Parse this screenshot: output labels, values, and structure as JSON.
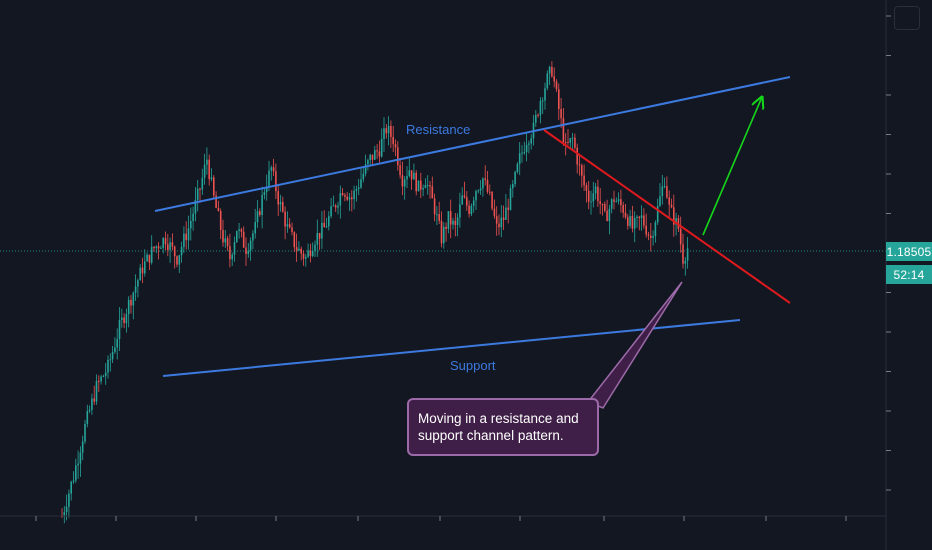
{
  "chart_data": {
    "type": "candlestick",
    "price_label": "1.18505",
    "countdown_label": "52:14",
    "annotations": {
      "resistance": "Resistance",
      "support": "Support",
      "note_line1": "Moving in a resistance and",
      "note_line2": "support channel pattern."
    },
    "price_path": [
      [
        0,
        1.167
      ],
      [
        5,
        1.169
      ],
      [
        10,
        1.1715
      ],
      [
        15,
        1.1735
      ],
      [
        20,
        1.1745
      ],
      [
        25,
        1.1765
      ],
      [
        30,
        1.178
      ],
      [
        35,
        1.1795
      ],
      [
        40,
        1.1805
      ],
      [
        45,
        1.181
      ],
      [
        50,
        1.18
      ],
      [
        55,
        1.1815
      ],
      [
        60,
        1.1835
      ],
      [
        63,
        1.185
      ],
      [
        66,
        1.183
      ],
      [
        70,
        1.181
      ],
      [
        73,
        1.18
      ],
      [
        76,
        1.1815
      ],
      [
        80,
        1.1805
      ],
      [
        84,
        1.1815
      ],
      [
        88,
        1.1835
      ],
      [
        91,
        1.1845
      ],
      [
        94,
        1.183
      ],
      [
        98,
        1.1815
      ],
      [
        102,
        1.1805
      ],
      [
        106,
        1.18
      ],
      [
        110,
        1.181
      ],
      [
        114,
        1.1815
      ],
      [
        118,
        1.1825
      ],
      [
        122,
        1.1835
      ],
      [
        126,
        1.183
      ],
      [
        130,
        1.184
      ],
      [
        134,
        1.185
      ],
      [
        138,
        1.1855
      ],
      [
        141,
        1.1865
      ],
      [
        144,
        1.186
      ],
      [
        148,
        1.184
      ],
      [
        151,
        1.1845
      ],
      [
        155,
        1.1835
      ],
      [
        158,
        1.184
      ],
      [
        162,
        1.1825
      ],
      [
        165,
        1.181
      ],
      [
        168,
        1.182
      ],
      [
        171,
        1.1815
      ],
      [
        174,
        1.183
      ],
      [
        177,
        1.1825
      ],
      [
        180,
        1.1835
      ],
      [
        183,
        1.184
      ],
      [
        186,
        1.183
      ],
      [
        189,
        1.1815
      ],
      [
        192,
        1.182
      ],
      [
        196,
        1.1835
      ],
      [
        199,
        1.185
      ],
      [
        202,
        1.186
      ],
      [
        205,
        1.1865
      ],
      [
        208,
        1.188
      ],
      [
        211,
        1.189
      ],
      [
        213,
        1.1895
      ],
      [
        216,
        1.1875
      ],
      [
        219,
        1.1855
      ],
      [
        222,
        1.186
      ],
      [
        226,
        1.184
      ],
      [
        229,
        1.183
      ],
      [
        232,
        1.1835
      ],
      [
        236,
        1.182
      ],
      [
        240,
        1.183
      ],
      [
        244,
        1.1825
      ],
      [
        248,
        1.1815
      ],
      [
        252,
        1.182
      ],
      [
        256,
        1.181
      ],
      [
        260,
        1.183
      ],
      [
        262,
        1.184
      ],
      [
        264,
        1.1825
      ],
      [
        268,
        1.1815
      ],
      [
        270,
        1.18
      ],
      [
        272,
        1.1805
      ]
    ],
    "trend_lines": [
      {
        "role": "resistance",
        "color": "#3c7ae0",
        "from": [
          0,
          1.185
        ],
        "to": [
          294,
          1.1915
        ]
      },
      {
        "role": "support",
        "color": "#3c7ae0",
        "from": [
          2,
          1.179
        ],
        "to": [
          275,
          1.181
        ]
      },
      {
        "role": "breakdown",
        "color": "#e0191d",
        "from": [
          189,
          1.1895
        ],
        "to": [
          283,
          1.1815
        ]
      },
      {
        "role": "projection",
        "color": "#15d61a",
        "from": [
          262,
          1.1845
        ],
        "to": [
          283,
          1.1905
        ]
      }
    ],
    "ylim": [
      1.167,
      1.193
    ],
    "grid": false,
    "legend": "none"
  }
}
